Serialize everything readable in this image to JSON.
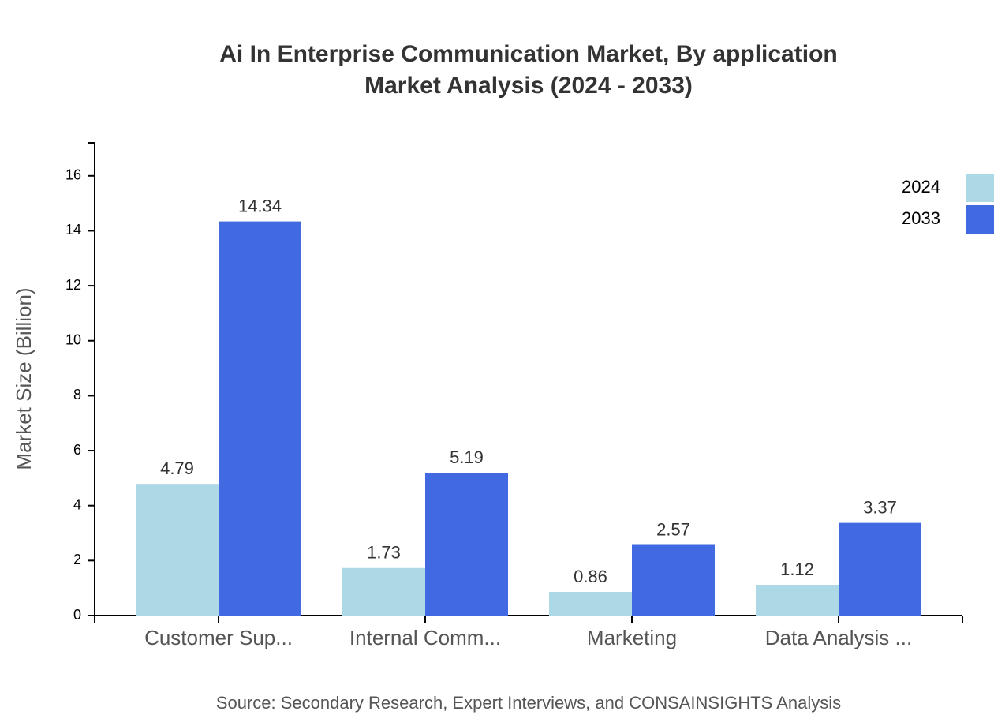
{
  "chart_data": {
    "type": "bar",
    "title": "Ai In Enterprise Communication Market, By application",
    "subtitle": "Market Analysis (2024 - 2033)",
    "y_label": "Market Size (Billion)",
    "source": "Source: Secondary Research, Expert Interviews, and CONSAINSIGHTS Analysis",
    "categories": [
      "Customer Sup...",
      "Internal Comm...",
      "Marketing",
      "Data Analysis ..."
    ],
    "series": [
      {
        "name": "2024",
        "color": "#add8e6",
        "values": [
          4.79,
          1.73,
          0.86,
          1.12
        ]
      },
      {
        "name": "2033",
        "color": "#4169e1",
        "values": [
          14.34,
          5.19,
          2.57,
          3.37
        ]
      }
    ],
    "ylim": [
      0,
      17.2
    ],
    "yticks": [
      0,
      2,
      4,
      6,
      8,
      10,
      12,
      14,
      16
    ],
    "legend": "top-right"
  }
}
